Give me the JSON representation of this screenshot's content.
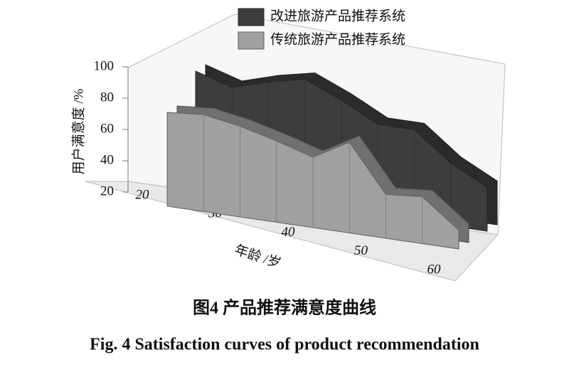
{
  "chart_data": {
    "type": "area3d",
    "x_label": "年龄 /岁",
    "y_label": "用户满意度 /%",
    "caption_cn": "图4 产品推荐满意度曲线",
    "caption_en": "Fig. 4 Satisfaction curves of product recommendation",
    "x": [
      20,
      25,
      30,
      35,
      40,
      45,
      50,
      55,
      60
    ],
    "xlim": [
      20,
      60
    ],
    "xticks": [
      20,
      30,
      40,
      50,
      60
    ],
    "ylim": [
      20,
      100
    ],
    "yticks": [
      20,
      40,
      60,
      80,
      100
    ],
    "series": [
      {
        "name": "改进旅游产品推荐系统",
        "color": "#3d3d3d",
        "values": [
          95,
          88,
          95,
          100,
          90,
          78,
          78,
          60,
          48
        ]
      },
      {
        "name": "传统旅游产品推荐系统",
        "color": "#a0a0a0",
        "values": [
          80,
          82,
          78,
          72,
          65,
          78,
          48,
          50,
          32
        ]
      }
    ]
  }
}
